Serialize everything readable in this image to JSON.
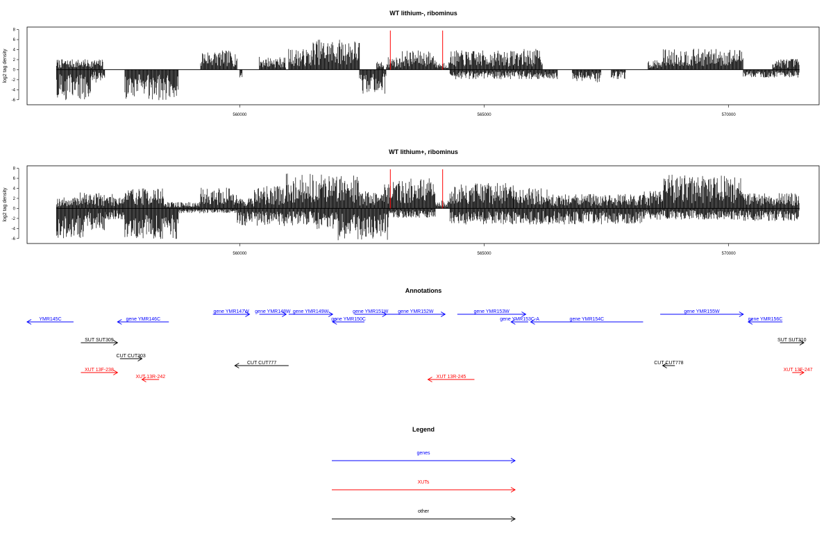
{
  "figure": {
    "panel1_title": "WT lithium-, ribominus",
    "panel2_title": "WT lithium+, ribominus",
    "annotations_title": "Annotations",
    "legend_title": "Legend"
  },
  "chart_data": [
    {
      "type": "bar",
      "title": "WT lithium-, ribominus",
      "ylabel": "log2 tag density",
      "ylim": [
        -7,
        8.5
      ],
      "yticks": [
        -6,
        -4,
        -2,
        0,
        2,
        4,
        6,
        8
      ],
      "xlim": [
        555650,
        571850
      ],
      "xticks": [
        560000,
        565000,
        570000
      ],
      "xtick_labels": [
        "560000",
        "565000",
        "570000"
      ],
      "forward_strand_regions": [
        {
          "start": 556250,
          "end": 557200,
          "density": 1.3
        },
        {
          "start": 559200,
          "end": 559950,
          "density": 2.4
        },
        {
          "start": 560400,
          "end": 560950,
          "density": 1.6
        },
        {
          "start": 561000,
          "end": 561500,
          "density": 2.6
        },
        {
          "start": 561500,
          "end": 562450,
          "density": 3.8
        },
        {
          "start": 562800,
          "end": 562950,
          "density": 1.0
        },
        {
          "start": 563000,
          "end": 563300,
          "density": 1.6
        },
        {
          "start": 563300,
          "end": 564000,
          "density": 2.4
        },
        {
          "start": 564000,
          "end": 564300,
          "density": 1.0
        },
        {
          "start": 564300,
          "end": 564800,
          "density": 2.4
        },
        {
          "start": 564800,
          "end": 565600,
          "density": 2.4
        },
        {
          "start": 565600,
          "end": 566200,
          "density": 2.6
        },
        {
          "start": 568350,
          "end": 568650,
          "density": 1.2
        },
        {
          "start": 568650,
          "end": 569800,
          "density": 2.6
        },
        {
          "start": 569800,
          "end": 570300,
          "density": 2.6
        },
        {
          "start": 570900,
          "end": 571450,
          "density": 1.4
        }
      ],
      "reverse_strand_regions": [
        {
          "start": 556250,
          "end": 556950,
          "density": -3.8
        },
        {
          "start": 556950,
          "end": 557250,
          "density": -1.6
        },
        {
          "start": 557650,
          "end": 558750,
          "density": -3.8
        },
        {
          "start": 560000,
          "end": 560050,
          "density": -1.0
        },
        {
          "start": 562450,
          "end": 563000,
          "density": -3.0
        },
        {
          "start": 564300,
          "end": 566500,
          "density": -1.2
        },
        {
          "start": 566800,
          "end": 567400,
          "density": -1.6
        },
        {
          "start": 567600,
          "end": 567900,
          "density": -1.2
        },
        {
          "start": 570300,
          "end": 571450,
          "density": -1.0
        }
      ],
      "highlight_marks": [
        {
          "position": 563080,
          "value": 7.8,
          "color": "#ff0000"
        },
        {
          "position": 564150,
          "value": 7.8,
          "color": "#ff0000"
        }
      ]
    },
    {
      "type": "bar",
      "title": "WT lithium+, ribominus",
      "ylabel": "log2 tag density",
      "ylim": [
        -7,
        8.5
      ],
      "yticks": [
        -6,
        -4,
        -2,
        0,
        2,
        4,
        6,
        8
      ],
      "xlim": [
        555650,
        571850
      ],
      "xticks": [
        560000,
        565000,
        570000
      ],
      "xtick_labels": [
        "560000",
        "565000",
        "570000"
      ],
      "forward_strand_regions": [
        {
          "start": 556250,
          "end": 556700,
          "density": 1.4
        },
        {
          "start": 556700,
          "end": 557250,
          "density": 2.0
        },
        {
          "start": 557250,
          "end": 557650,
          "density": 1.8
        },
        {
          "start": 557650,
          "end": 558450,
          "density": 2.6
        },
        {
          "start": 558450,
          "end": 559200,
          "density": 0.8
        },
        {
          "start": 559200,
          "end": 559950,
          "density": 2.6
        },
        {
          "start": 559950,
          "end": 560300,
          "density": 1.4
        },
        {
          "start": 560300,
          "end": 560950,
          "density": 2.8
        },
        {
          "start": 560950,
          "end": 562450,
          "density": 4.4
        },
        {
          "start": 562450,
          "end": 562950,
          "density": 2.2
        },
        {
          "start": 562950,
          "end": 564000,
          "density": 3.8
        },
        {
          "start": 564000,
          "end": 564300,
          "density": 1.0
        },
        {
          "start": 564300,
          "end": 564800,
          "density": 3.0
        },
        {
          "start": 564800,
          "end": 565600,
          "density": 3.2
        },
        {
          "start": 565600,
          "end": 566300,
          "density": 2.6
        },
        {
          "start": 566300,
          "end": 568250,
          "density": 1.8
        },
        {
          "start": 568250,
          "end": 568650,
          "density": 2.2
        },
        {
          "start": 568650,
          "end": 570300,
          "density": 4.2
        },
        {
          "start": 570300,
          "end": 571450,
          "density": 2.0
        }
      ],
      "reverse_strand_regions": [
        {
          "start": 556250,
          "end": 556850,
          "density": -3.8
        },
        {
          "start": 556850,
          "end": 557250,
          "density": -2.8
        },
        {
          "start": 557250,
          "end": 557650,
          "density": -1.4
        },
        {
          "start": 557650,
          "end": 558750,
          "density": -3.8
        },
        {
          "start": 558750,
          "end": 559950,
          "density": -0.6
        },
        {
          "start": 559950,
          "end": 561500,
          "density": -2.2
        },
        {
          "start": 561500,
          "end": 562000,
          "density": -2.6
        },
        {
          "start": 562000,
          "end": 563050,
          "density": -4.0
        },
        {
          "start": 563050,
          "end": 564000,
          "density": -1.2
        },
        {
          "start": 564300,
          "end": 568250,
          "density": -2.0
        },
        {
          "start": 568250,
          "end": 570300,
          "density": -1.4
        },
        {
          "start": 570300,
          "end": 571450,
          "density": -1.6
        }
      ],
      "highlight_marks": [
        {
          "position": 563080,
          "value": 7.8,
          "color": "#ff0000"
        },
        {
          "position": 564150,
          "value": 7.8,
          "color": "#ff0000"
        }
      ]
    }
  ],
  "annotations": [
    {
      "label": "YMR145C",
      "start": 555650,
      "end": 556600,
      "strand": "-",
      "color": "#0000ff",
      "row": 2
    },
    {
      "label": "gene YMR146C",
      "start": 557500,
      "end": 558550,
      "strand": "-",
      "color": "#0000ff",
      "row": 2
    },
    {
      "label": "gene YMR147W",
      "start": 559450,
      "end": 560200,
      "strand": "+",
      "color": "#0000ff",
      "row": 1
    },
    {
      "label": "gene YMR148W",
      "start": 560400,
      "end": 560950,
      "strand": "+",
      "color": "#0000ff",
      "row": 1
    },
    {
      "label": "gene YMR149W",
      "start": 561000,
      "end": 561900,
      "strand": "+",
      "color": "#0000ff",
      "row": 1
    },
    {
      "label": "gene YMR150C",
      "start": 561900,
      "end": 562550,
      "strand": "-",
      "color": "#0000ff",
      "row": 2
    },
    {
      "label": "gene YMR151W",
      "start": 562350,
      "end": 563000,
      "strand": "+",
      "color": "#0000ff",
      "row": 1
    },
    {
      "label": "gene YMR152W",
      "start": 563000,
      "end": 564200,
      "strand": "+",
      "color": "#0000ff",
      "row": 1
    },
    {
      "label": "gene YMR153W",
      "start": 564450,
      "end": 565850,
      "strand": "+",
      "color": "#0000ff",
      "row": 1
    },
    {
      "label": "gene YMR153C-A",
      "start": 565550,
      "end": 565900,
      "strand": "-",
      "color": "#0000ff",
      "row": 2
    },
    {
      "label": "gene YMR154C",
      "start": 565950,
      "end": 568250,
      "strand": "-",
      "color": "#0000ff",
      "row": 2
    },
    {
      "label": "gene YMR155W",
      "start": 568600,
      "end": 570300,
      "strand": "+",
      "color": "#0000ff",
      "row": 1
    },
    {
      "label": "gene YMR156C",
      "start": 570400,
      "end": 571100,
      "strand": "-",
      "color": "#0000ff",
      "row": 2
    },
    {
      "label": "SUT SUT309",
      "start": 556750,
      "end": 557500,
      "strand": "+",
      "color": "#000000",
      "row": 3
    },
    {
      "label": "CUT CUT303",
      "start": 557550,
      "end": 558000,
      "strand": "+",
      "color": "#000000",
      "row": 4
    },
    {
      "label": "CUT CUT777",
      "start": 559900,
      "end": 561000,
      "strand": "-",
      "color": "#000000",
      "row": 5
    },
    {
      "label": "CUT CUT778",
      "start": 568650,
      "end": 568900,
      "strand": "-",
      "color": "#000000",
      "row": 5
    },
    {
      "label": "SUT SUT310",
      "start": 571050,
      "end": 571700,
      "strand": "+",
      "color": "#000000",
      "row": 3
    },
    {
      "label": "XUT 13F-238",
      "start": 556750,
      "end": 557500,
      "strand": "+",
      "color": "#ff0000",
      "row": 6
    },
    {
      "label": "XUT 13R-242",
      "start": 558000,
      "end": 558350,
      "strand": "-",
      "color": "#ff0000",
      "row": 7
    },
    {
      "label": "XUT 13R-245",
      "start": 563850,
      "end": 564800,
      "strand": "-",
      "color": "#ff0000",
      "row": 7
    },
    {
      "label": "XUT 13F-247",
      "start": 571300,
      "end": 571750,
      "strand": "+",
      "color": "#ff0000",
      "row": 6
    }
  ],
  "legend": [
    {
      "label": "genes",
      "color": "#0000ff"
    },
    {
      "label": "XUTs",
      "color": "#ff0000"
    },
    {
      "label": "other",
      "color": "#000000"
    }
  ]
}
